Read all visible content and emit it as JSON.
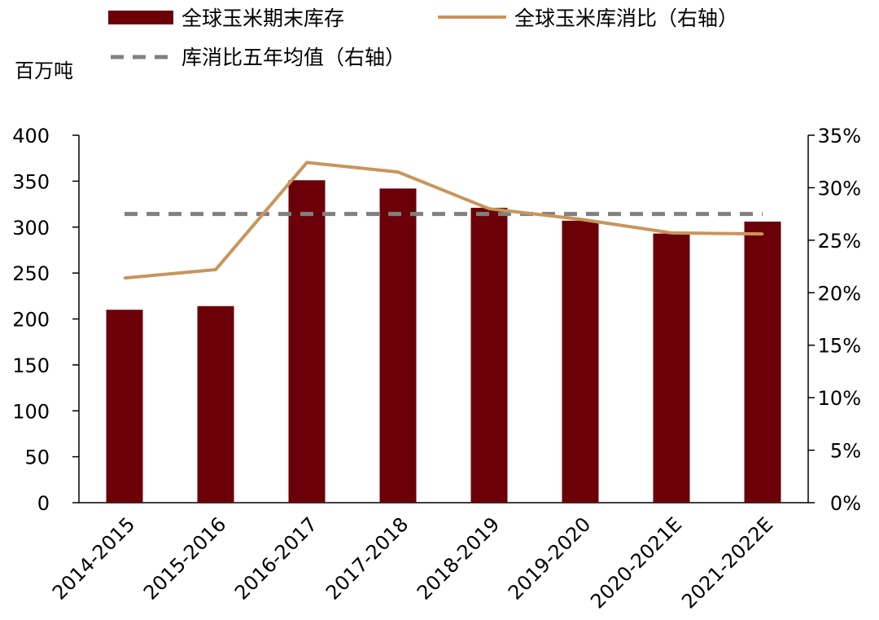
{
  "chart_data": {
    "type": "bar",
    "categories": [
      "2014-2015",
      "2015-2016",
      "2016-2017",
      "2017-2018",
      "2018-2019",
      "2019-2020",
      "2020-2021E",
      "2021-2022E"
    ],
    "series": [
      {
        "name": "全球玉米期末库存",
        "type": "bar",
        "axis": "left",
        "color": "#6b0008",
        "values": [
          210,
          214,
          351,
          342,
          321,
          307,
          293,
          306
        ]
      },
      {
        "name": "全球玉米库消比（右轴）",
        "type": "line",
        "axis": "right",
        "color": "#c8955a",
        "values": [
          21.4,
          22.2,
          32.4,
          31.5,
          28.0,
          27.0,
          25.7,
          25.6
        ]
      },
      {
        "name": "库消比五年均值（右轴）",
        "type": "line",
        "style": "dashed",
        "axis": "right",
        "color": "#808080",
        "values": [
          27.5,
          27.5,
          27.5,
          27.5,
          27.5,
          27.5,
          27.5,
          27.5
        ]
      }
    ],
    "y_left": {
      "label": "百万吨",
      "ylim": [
        0,
        400
      ],
      "ticks": [
        "0",
        "50",
        "100",
        "150",
        "200",
        "250",
        "300",
        "350",
        "400"
      ]
    },
    "y_right": {
      "ylim": [
        0,
        35
      ],
      "ticks": [
        "0%",
        "5%",
        "10%",
        "15%",
        "20%",
        "25%",
        "30%",
        "35%"
      ]
    },
    "grid": false,
    "legend_position": "top"
  }
}
